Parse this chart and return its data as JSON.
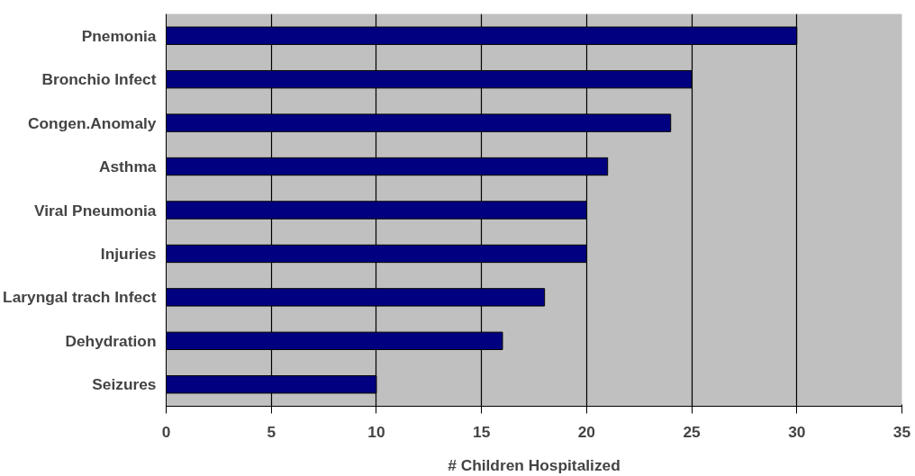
{
  "chart_data": {
    "type": "bar",
    "orientation": "horizontal",
    "xlabel": "# Children Hospitalized",
    "categories": [
      "Pnemonia",
      "Bronchio Infect",
      "Congen.Anomaly",
      "Asthma",
      "Viral Pneumonia",
      "Injuries",
      "Laryngal trach Infect",
      "Dehydration",
      "Seizures"
    ],
    "values": [
      30,
      25,
      24,
      21,
      20,
      20,
      18,
      16,
      10
    ],
    "color": "#000080",
    "xlim": [
      0,
      35
    ],
    "xticks": [
      0,
      5,
      10,
      15,
      20,
      25,
      30,
      35
    ],
    "grid": "x"
  }
}
